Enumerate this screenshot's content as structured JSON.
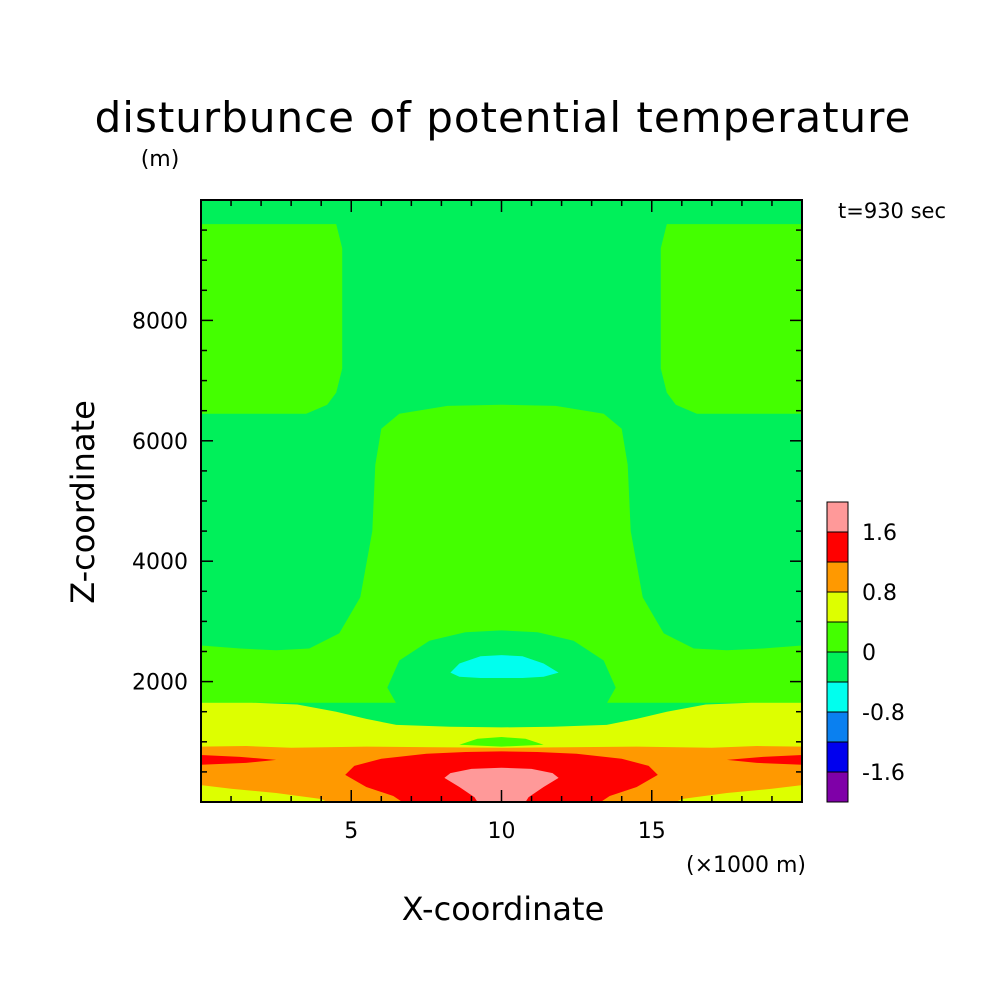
{
  "chart_data": {
    "type": "heatmap",
    "title": "disturbunce of potential temperature",
    "ylabel_unit": "(m)",
    "xlabel": "X-coordinate",
    "ylabel": "Z-coordinate",
    "xunit_label": "(×1000 m)",
    "time_label": "t=930 sec",
    "xlim": [
      0,
      20
    ],
    "ylim": [
      0,
      10000
    ],
    "x_ticks": [
      5,
      10,
      15
    ],
    "y_ticks": [
      2000,
      4000,
      6000,
      8000
    ],
    "x_tick_labels": [
      "5",
      "10",
      "15"
    ],
    "y_tick_labels": [
      "2000",
      "4000",
      "6000",
      "8000"
    ],
    "colorbar": {
      "levels": [
        -2.0,
        -1.6,
        -1.2,
        -0.8,
        -0.4,
        0,
        0.4,
        0.8,
        1.2,
        1.6,
        2.0
      ],
      "colors": [
        "#7f00a8",
        "#0000ee",
        "#0a80f0",
        "#00ffee",
        "#00f05a",
        "#44ff00",
        "#ddff00",
        "#ff9900",
        "#ff0000",
        "#ff9999"
      ],
      "labels": [
        "1.6",
        "0.8",
        "0",
        "-0.8",
        "-1.6"
      ],
      "label_values": [
        1.6,
        0.8,
        0,
        -0.8,
        -1.6
      ]
    },
    "regions": [
      {
        "level": 4,
        "points": [
          [
            0,
            9.8
          ],
          [
            20,
            9.8
          ],
          [
            20,
            10
          ],
          [
            0,
            10
          ]
        ]
      },
      {
        "level": 5,
        "points": [
          [
            0,
            9.6
          ],
          [
            4.5,
            9.6
          ],
          [
            4.7,
            9.2
          ],
          [
            4.7,
            7.2
          ],
          [
            4.5,
            6.8
          ],
          [
            4.2,
            6.6
          ],
          [
            3.5,
            6.45
          ],
          [
            0,
            6.45
          ]
        ]
      },
      {
        "level": 5,
        "points": [
          [
            20,
            9.6
          ],
          [
            15.5,
            9.6
          ],
          [
            15.3,
            9.2
          ],
          [
            15.3,
            7.2
          ],
          [
            15.5,
            6.8
          ],
          [
            15.8,
            6.6
          ],
          [
            16.5,
            6.45
          ],
          [
            20,
            6.45
          ]
        ]
      },
      {
        "level": 5,
        "points": [
          [
            0,
            2.6
          ],
          [
            1.3,
            2.55
          ],
          [
            2.5,
            2.52
          ],
          [
            3.6,
            2.55
          ],
          [
            4.6,
            2.8
          ],
          [
            5.3,
            3.4
          ],
          [
            5.7,
            4.5
          ],
          [
            5.8,
            5.6
          ],
          [
            6.0,
            6.2
          ],
          [
            6.6,
            6.45
          ],
          [
            8.2,
            6.58
          ],
          [
            10,
            6.6
          ],
          [
            11.8,
            6.58
          ],
          [
            13.4,
            6.45
          ],
          [
            14.0,
            6.2
          ],
          [
            14.2,
            5.6
          ],
          [
            14.3,
            4.5
          ],
          [
            14.7,
            3.4
          ],
          [
            15.4,
            2.8
          ],
          [
            16.4,
            2.55
          ],
          [
            17.5,
            2.52
          ],
          [
            18.7,
            2.55
          ],
          [
            20,
            2.6
          ],
          [
            20,
            1.65
          ],
          [
            0,
            1.65
          ]
        ]
      },
      {
        "level": 4,
        "points": [
          [
            6.2,
            1.9
          ],
          [
            6.6,
            1.55
          ],
          [
            7.6,
            1.42
          ],
          [
            8.8,
            1.35
          ],
          [
            10,
            1.32
          ],
          [
            11.2,
            1.35
          ],
          [
            12.4,
            1.42
          ],
          [
            13.4,
            1.55
          ],
          [
            13.8,
            1.9
          ],
          [
            13.4,
            2.35
          ],
          [
            12.4,
            2.68
          ],
          [
            11.2,
            2.82
          ],
          [
            10,
            2.85
          ],
          [
            8.8,
            2.82
          ],
          [
            7.6,
            2.68
          ],
          [
            6.6,
            2.35
          ]
        ]
      },
      {
        "level": 3,
        "points": [
          [
            8.3,
            2.15
          ],
          [
            8.6,
            2.3
          ],
          [
            9.3,
            2.42
          ],
          [
            10,
            2.44
          ],
          [
            10.7,
            2.42
          ],
          [
            11.4,
            2.3
          ],
          [
            11.9,
            2.15
          ],
          [
            11.4,
            2.08
          ],
          [
            10.7,
            2.06
          ],
          [
            9.3,
            2.06
          ],
          [
            8.6,
            2.08
          ]
        ]
      },
      {
        "level": 6,
        "points": [
          [
            0,
            1.65
          ],
          [
            1.7,
            1.65
          ],
          [
            3.2,
            1.62
          ],
          [
            4.5,
            1.5
          ],
          [
            5.5,
            1.38
          ],
          [
            6.5,
            1.28
          ],
          [
            8.3,
            1.25
          ],
          [
            10,
            1.24
          ],
          [
            11.7,
            1.25
          ],
          [
            13.5,
            1.28
          ],
          [
            14.5,
            1.38
          ],
          [
            15.5,
            1.5
          ],
          [
            16.8,
            1.62
          ],
          [
            18.3,
            1.65
          ],
          [
            20,
            1.65
          ],
          [
            20,
            0
          ],
          [
            0,
            0
          ]
        ]
      },
      {
        "level": 5,
        "points": [
          [
            8.6,
            0.95
          ],
          [
            9.2,
            1.05
          ],
          [
            10,
            1.08
          ],
          [
            10.8,
            1.05
          ],
          [
            11.4,
            0.95
          ],
          [
            10,
            0.92
          ]
        ]
      },
      {
        "level": 7,
        "points": [
          [
            0,
            0.92
          ],
          [
            1.5,
            0.93
          ],
          [
            3.0,
            0.9
          ],
          [
            5.5,
            0.92
          ],
          [
            7.8,
            0.91
          ],
          [
            10,
            0.9
          ],
          [
            12.2,
            0.91
          ],
          [
            14.5,
            0.92
          ],
          [
            17.0,
            0.9
          ],
          [
            18.5,
            0.93
          ],
          [
            20,
            0.92
          ],
          [
            20,
            0.28
          ],
          [
            19,
            0.22
          ],
          [
            17.5,
            0.15
          ],
          [
            16,
            0.05
          ],
          [
            15.8,
            0
          ],
          [
            4.2,
            0
          ],
          [
            4.0,
            0.05
          ],
          [
            2.5,
            0.15
          ],
          [
            1,
            0.22
          ],
          [
            0,
            0.28
          ]
        ]
      },
      {
        "level": 8,
        "points": [
          [
            0,
            0.78
          ],
          [
            1.3,
            0.75
          ],
          [
            2.5,
            0.7
          ],
          [
            1.5,
            0.65
          ],
          [
            0,
            0.62
          ]
        ]
      },
      {
        "level": 8,
        "points": [
          [
            20,
            0.78
          ],
          [
            18.7,
            0.75
          ],
          [
            17.5,
            0.7
          ],
          [
            18.5,
            0.65
          ],
          [
            20,
            0.62
          ]
        ]
      },
      {
        "level": 8,
        "points": [
          [
            4.8,
            0.45
          ],
          [
            5.1,
            0.6
          ],
          [
            6.0,
            0.72
          ],
          [
            7.5,
            0.8
          ],
          [
            8.8,
            0.83
          ],
          [
            10,
            0.84
          ],
          [
            11.2,
            0.83
          ],
          [
            12.5,
            0.8
          ],
          [
            14.0,
            0.72
          ],
          [
            14.9,
            0.6
          ],
          [
            15.2,
            0.45
          ],
          [
            14.5,
            0.25
          ],
          [
            13.6,
            0.1
          ],
          [
            13.3,
            0
          ],
          [
            6.7,
            0
          ],
          [
            6.4,
            0.1
          ],
          [
            5.5,
            0.25
          ]
        ]
      },
      {
        "level": 9,
        "points": [
          [
            8.1,
            0.4
          ],
          [
            8.3,
            0.48
          ],
          [
            9.0,
            0.55
          ],
          [
            10,
            0.57
          ],
          [
            11.0,
            0.55
          ],
          [
            11.7,
            0.48
          ],
          [
            11.9,
            0.4
          ],
          [
            11.4,
            0.25
          ],
          [
            10.9,
            0.08
          ],
          [
            10.8,
            0
          ],
          [
            9.2,
            0
          ],
          [
            9.1,
            0.08
          ],
          [
            8.6,
            0.25
          ]
        ]
      }
    ]
  }
}
